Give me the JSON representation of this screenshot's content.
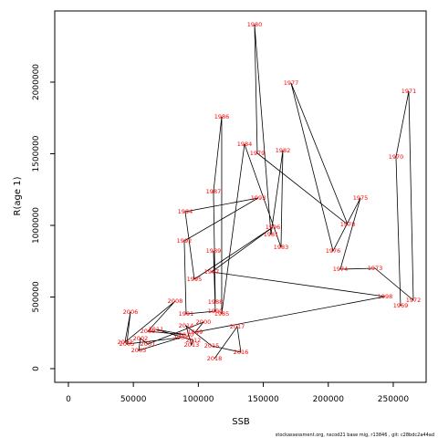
{
  "chart_data": {
    "type": "line",
    "xlabel": "SSB",
    "ylabel": "R(age 1)",
    "footer": "stockassessment.org, nscod21 base mig, r13846 , git: c28bdc2a44ad",
    "labels": [
      "1969",
      "1970",
      "1971",
      "1972",
      "1973",
      "1974",
      "1975",
      "1976",
      "1977",
      "1978",
      "1979",
      "1980",
      "1981",
      "1982",
      "1983",
      "1984",
      "1985",
      "1986",
      "1987",
      "1988",
      "1989",
      "1990",
      "1991",
      "1992",
      "1993",
      "1994",
      "1995",
      "1996",
      "1997",
      "1998",
      "1999",
      "2000",
      "2001",
      "2002",
      "2003",
      "2004",
      "2005",
      "2006",
      "2007",
      "2008",
      "2009",
      "2010",
      "2011",
      "2012",
      "2013",
      "2014",
      "2015",
      "2016",
      "2017",
      "2018"
    ],
    "x": [
      255618,
      252107,
      261938,
      265449,
      235955,
      209270,
      224719,
      203652,
      171348,
      214888,
      145365,
      143258,
      155899,
      165028,
      163624,
      135534,
      117978,
      117978,
      111657,
      113062,
      111657,
      113062,
      90590,
      89185,
      146067,
      89888,
      96910,
      157303,
      110253,
      243680,
      97612,
      103933,
      61096,
      55478,
      54073,
      86376,
      44944,
      47753,
      43539,
      82163,
      61096,
      90590,
      67416,
      96208,
      94803,
      90590,
      110253,
      132725,
      129916,
      112360
    ],
    "values": [
      439490,
      1477707,
      1936306,
      477707,
      700637,
      694268,
      1191083,
      821656,
      1993631,
      1006369,
      1503185,
      2401274,
      936306,
      1522293,
      847134,
      1566879,
      382166,
      1757962,
      1235669,
      464968,
      821656,
      401274,
      382166,
      891720,
      1191083,
      1095541,
      624204,
      987261,
      675159,
      503185,
      254777,
      324841,
      171975,
      210191,
      127389,
      216561,
      171975,
      394904,
      184713,
      471338,
      261146,
      235669,
      273885,
      197452,
      165605,
      299363,
      159236,
      114650,
      292994,
      70064
    ],
    "color": "#000000",
    "label_color": "#ff0000",
    "xlim": [
      -10500,
      275300
    ],
    "ylim": [
      -95500,
      2496800
    ],
    "xticks": [
      0,
      50000,
      100000,
      150000,
      200000,
      250000
    ],
    "yticks": [
      0,
      500000,
      1000000,
      1500000,
      2000000
    ]
  }
}
